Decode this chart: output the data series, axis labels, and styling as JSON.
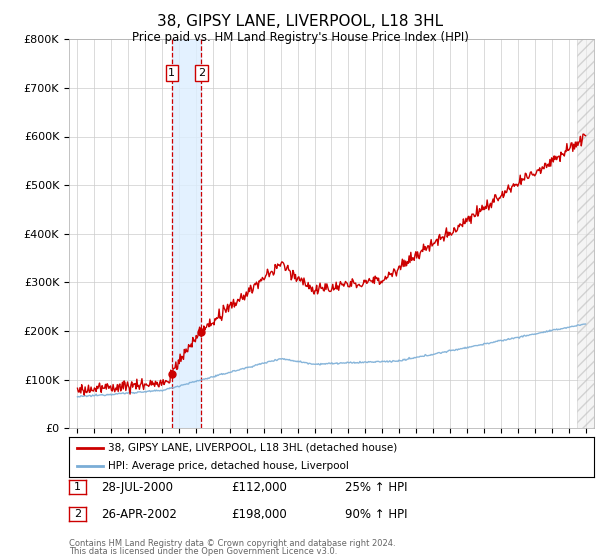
{
  "title": "38, GIPSY LANE, LIVERPOOL, L18 3HL",
  "subtitle": "Price paid vs. HM Land Registry's House Price Index (HPI)",
  "ylim": [
    0,
    800000
  ],
  "yticks": [
    0,
    100000,
    200000,
    300000,
    400000,
    500000,
    600000,
    700000,
    800000
  ],
  "ytick_labels": [
    "£0",
    "£100K",
    "£200K",
    "£300K",
    "£400K",
    "£500K",
    "£600K",
    "£700K",
    "£800K"
  ],
  "xlim_min": 1994.5,
  "xlim_max": 2025.5,
  "transactions": [
    {
      "date_num": 2000.57,
      "price": 112000,
      "label": "1",
      "date_str": "28-JUL-2000",
      "price_str": "£112,000",
      "pct_str": "25% ↑ HPI"
    },
    {
      "date_num": 2002.32,
      "price": 198000,
      "label": "2",
      "date_str": "26-APR-2002",
      "price_str": "£198,000",
      "pct_str": "90% ↑ HPI"
    }
  ],
  "legend_line1": "38, GIPSY LANE, LIVERPOOL, L18 3HL (detached house)",
  "legend_line2": "HPI: Average price, detached house, Liverpool",
  "footer1": "Contains HM Land Registry data © Crown copyright and database right 2024.",
  "footer2": "This data is licensed under the Open Government Licence v3.0.",
  "red_color": "#cc0000",
  "blue_color": "#7aadd6",
  "shaded_color": "#ddeeff",
  "bg_color": "#ffffff",
  "grid_color": "#cccccc",
  "hatch_color": "#e8e8e8"
}
